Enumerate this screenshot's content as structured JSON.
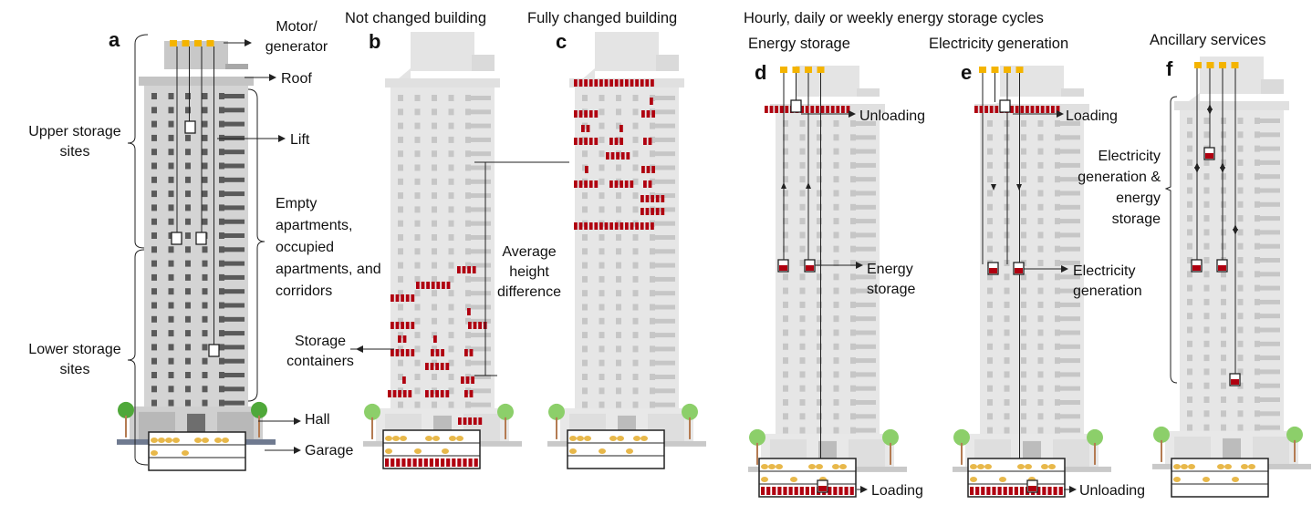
{
  "figure": {
    "section_title": "Hourly, daily or weekly energy storage cycles",
    "colors": {
      "motor": "#f4b400",
      "container": "#b00010",
      "building": "#e6e6e6",
      "building_dark": "#bdbdbd",
      "window_a": "#5a5a5a",
      "window_light": "#c6c6c6",
      "tree": "#8ccf6a",
      "line": "#222222"
    },
    "panels": [
      {
        "id": "a",
        "letter": "a",
        "title": "",
        "labels": {
          "motor": "Motor/ generator",
          "roof": "Roof",
          "lift": "Lift",
          "apartments": "Empty apartments, occupied apartments, and corridors",
          "hall": "Hall",
          "garage": "Garage",
          "upper": "Upper storage sites",
          "lower": "Lower storage sites"
        }
      },
      {
        "id": "b",
        "letter": "b",
        "title": "Not changed building",
        "labels": {
          "storage_containers": "Storage containers",
          "average_height": "Average height difference"
        }
      },
      {
        "id": "c",
        "letter": "c",
        "title": "Fully changed building"
      },
      {
        "id": "d",
        "letter": "d",
        "title": "Energy storage",
        "labels": {
          "top": "Unloading",
          "middle": "Energy storage",
          "bottom": "Loading"
        }
      },
      {
        "id": "e",
        "letter": "e",
        "title": "Electricity generation",
        "labels": {
          "top": "Loading",
          "middle": "Electricity generation",
          "bottom": "Unloading"
        }
      },
      {
        "id": "f",
        "letter": "f",
        "title": "Ancillary services",
        "labels": {
          "bracket": "Electricity generation & energy storage"
        }
      }
    ]
  }
}
